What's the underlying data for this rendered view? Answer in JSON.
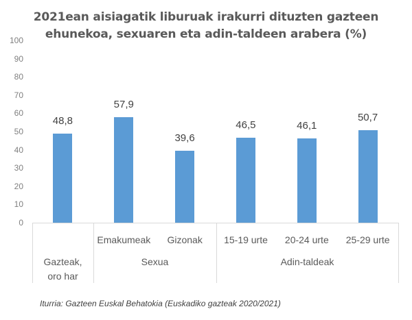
{
  "chart_data": {
    "type": "bar",
    "title": "2021ean aisiagatik liburuak irakurri dituzten gazteen ehunekoa, sexuaren eta adin-taldeen arabera (%)",
    "title_lines": [
      "2021ean aisiagatik liburuak irakurri dituzten gazteen",
      "ehunekoa, sexuaren eta adin-taldeen arabera (%)"
    ],
    "categories": [
      "Gazteak, oro har",
      "Emakumeak",
      "Gizonak",
      "15-19 urte",
      "20-24 urte",
      "25-29 urte"
    ],
    "values": [
      48.8,
      57.9,
      39.6,
      46.5,
      46.1,
      50.7
    ],
    "value_labels": [
      "48,8",
      "57,9",
      "39,6",
      "46,5",
      "46,1",
      "50,7"
    ],
    "groups": [
      {
        "label": "Gazteak, oro har",
        "lines": [
          "Gazteak,",
          "oro har"
        ],
        "categories": []
      },
      {
        "label": "Sexua",
        "categories": [
          "Emakumeak",
          "Gizonak"
        ]
      },
      {
        "label": "Adin-taldeak",
        "categories": [
          "15-19 urte",
          "20-24 urte",
          "25-29 urte"
        ]
      }
    ],
    "xlabel": "",
    "ylabel": "",
    "ylim": [
      0,
      100
    ],
    "yticks": [
      "0",
      "10",
      "20",
      "30",
      "40",
      "50",
      "60",
      "70",
      "80",
      "90",
      "100"
    ],
    "grid": false,
    "legend": null,
    "bar_color": "#5b9bd5",
    "source": "Iturria: Gazteen Euskal Behatokia (Euskadiko gazteak 2020/2021)"
  }
}
